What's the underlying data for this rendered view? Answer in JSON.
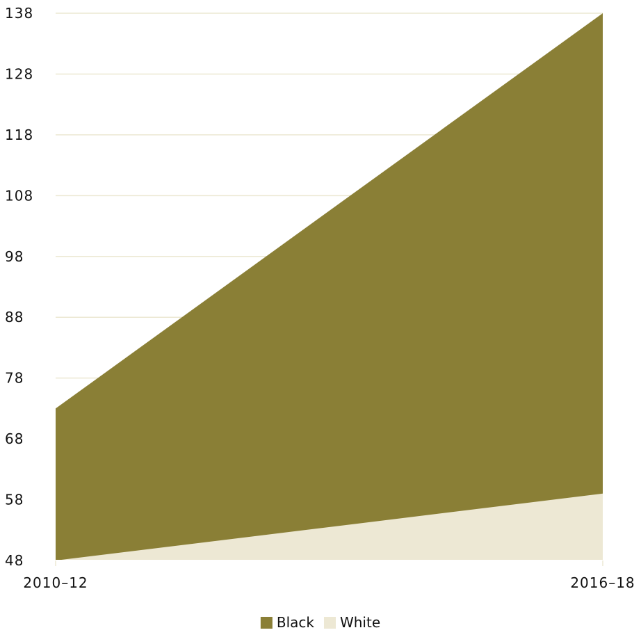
{
  "chart_data": {
    "type": "area",
    "stacked": false,
    "categories": [
      "2010–12",
      "2016–18"
    ],
    "series": [
      {
        "name": "Black",
        "values": [
          73,
          138
        ],
        "color": "#8a7f36"
      },
      {
        "name": "White",
        "values": [
          48,
          59
        ],
        "color": "#ede8d4"
      }
    ],
    "yticks": [
      48,
      58,
      68,
      78,
      88,
      98,
      108,
      118,
      128,
      138
    ],
    "ylim": [
      48,
      138
    ],
    "grid": true,
    "grid_color": "#ece8d2",
    "legend_position": "bottom-center",
    "title": "",
    "xlabel": "",
    "ylabel": ""
  }
}
